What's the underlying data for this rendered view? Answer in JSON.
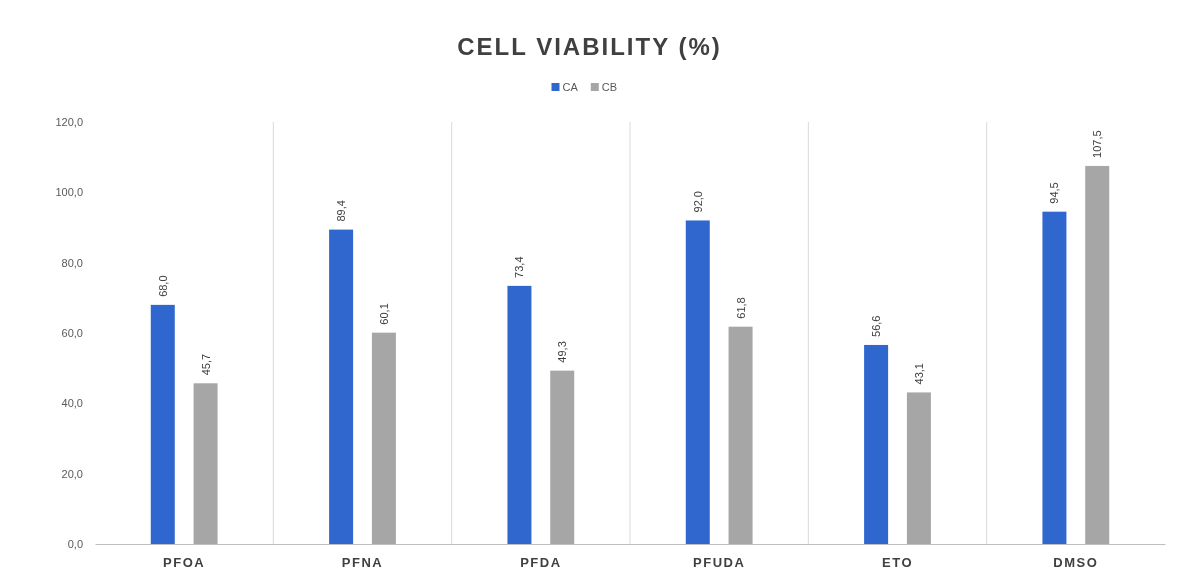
{
  "chart_data": {
    "type": "bar",
    "title": "CELL VIABILITY (%)",
    "categories": [
      "PFOA",
      "PFNA",
      "PFDA",
      "PFUDA",
      "ETO",
      "DMSO"
    ],
    "series": [
      {
        "name": "CA",
        "color": "#2f67cf",
        "values": [
          68.0,
          89.4,
          73.4,
          92.0,
          56.6,
          94.5
        ],
        "value_labels": [
          "68,0",
          "89,4",
          "73,4",
          "92,0",
          "56,6",
          "94,5"
        ]
      },
      {
        "name": "CB",
        "color": "#a6a6a6",
        "values": [
          45.7,
          60.1,
          49.3,
          61.8,
          43.1,
          107.5
        ],
        "value_labels": [
          "45,7",
          "60,1",
          "49,3",
          "61,8",
          "43,1",
          "107,5"
        ]
      }
    ],
    "ylim": [
      0,
      120
    ],
    "yticks": [
      {
        "value": 0,
        "label": "0,0"
      },
      {
        "value": 20,
        "label": "20,0"
      },
      {
        "value": 40,
        "label": "40,0"
      },
      {
        "value": 60,
        "label": "60,0"
      },
      {
        "value": 80,
        "label": "80,0"
      },
      {
        "value": 100,
        "label": "100,0"
      },
      {
        "value": 120,
        "label": "120,0"
      }
    ],
    "grid": "x",
    "legend": "top"
  }
}
